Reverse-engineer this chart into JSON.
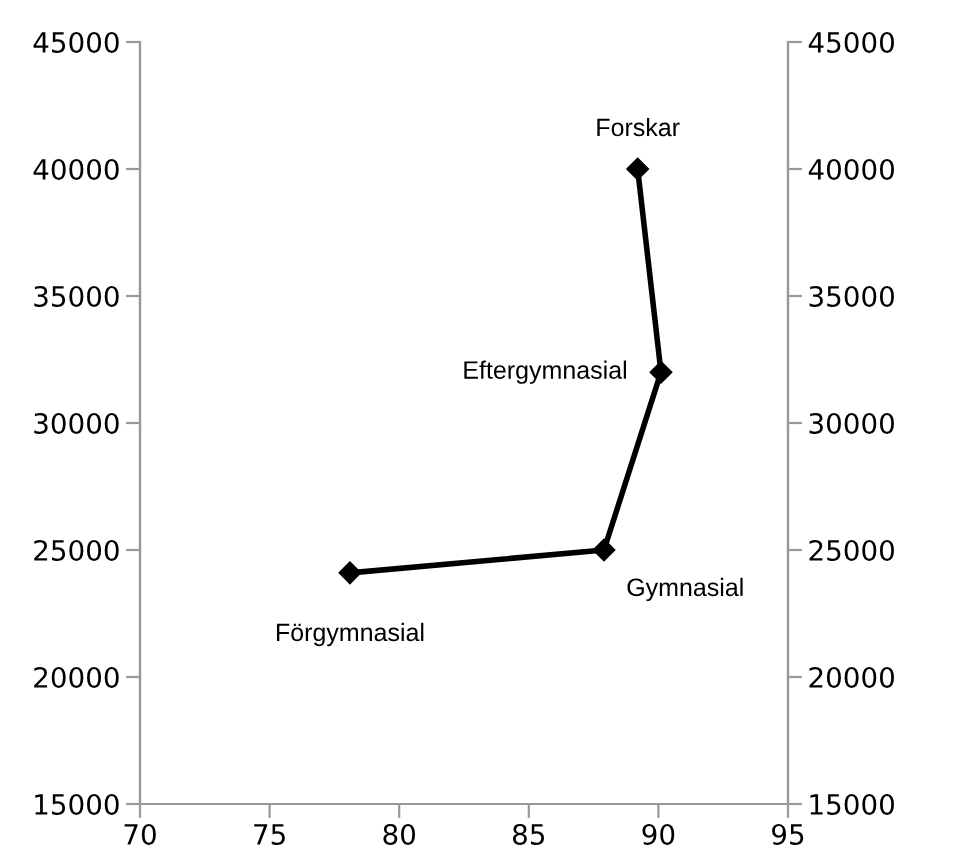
{
  "chart_data": {
    "type": "line",
    "x": [
      78.1,
      87.9,
      90.1,
      89.2
    ],
    "series": [
      {
        "color": "#000000",
        "values": [
          24100,
          25000,
          32000,
          40000
        ]
      }
    ],
    "marker": "diamond",
    "line_style": "solid",
    "xlim": [
      70,
      95
    ],
    "xticks": [
      70,
      75,
      80,
      85,
      90,
      95
    ],
    "ylim": [
      15000,
      45000
    ],
    "yticks": [
      15000,
      20000,
      25000,
      30000,
      35000,
      40000,
      45000
    ],
    "y2lim": [
      15000,
      45000
    ],
    "y2ticks": [
      15000,
      20000,
      25000,
      30000,
      35000,
      40000,
      45000
    ],
    "grid": false,
    "legend": false,
    "annotations": [
      {
        "text": "Förgymnasial",
        "x": 78.1,
        "y": 24100
      },
      {
        "text": "Gymnasial",
        "x": 87.9,
        "y": 25000
      },
      {
        "text": "Eftergymnasial",
        "x": 90.1,
        "y": 32000
      },
      {
        "text": "Forskar",
        "x": 89.2,
        "y": 40000
      }
    ]
  }
}
